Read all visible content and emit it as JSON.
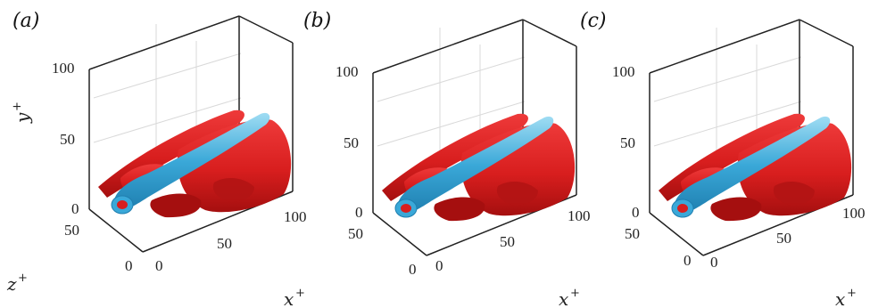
{
  "colors": {
    "positive_isosurface": "#d81e1e",
    "positive_shade": "#a50f0f",
    "negative_isosurface": "#3aa8d8",
    "negative_highlight": "#9fdcf3",
    "frame": "#222222",
    "grid": "#d9d9d9"
  },
  "panels": [
    {
      "letter": "(a)"
    },
    {
      "letter": "(b)"
    },
    {
      "letter": "(c)"
    }
  ],
  "axes": {
    "y_ticks": [
      "100",
      "50",
      "0"
    ],
    "z_ticks": [
      "50",
      "0"
    ],
    "x_ticks": [
      "0",
      "50",
      "100"
    ],
    "y_label": "y",
    "z_label": "z",
    "x_label": "x",
    "superscript": "+"
  }
}
